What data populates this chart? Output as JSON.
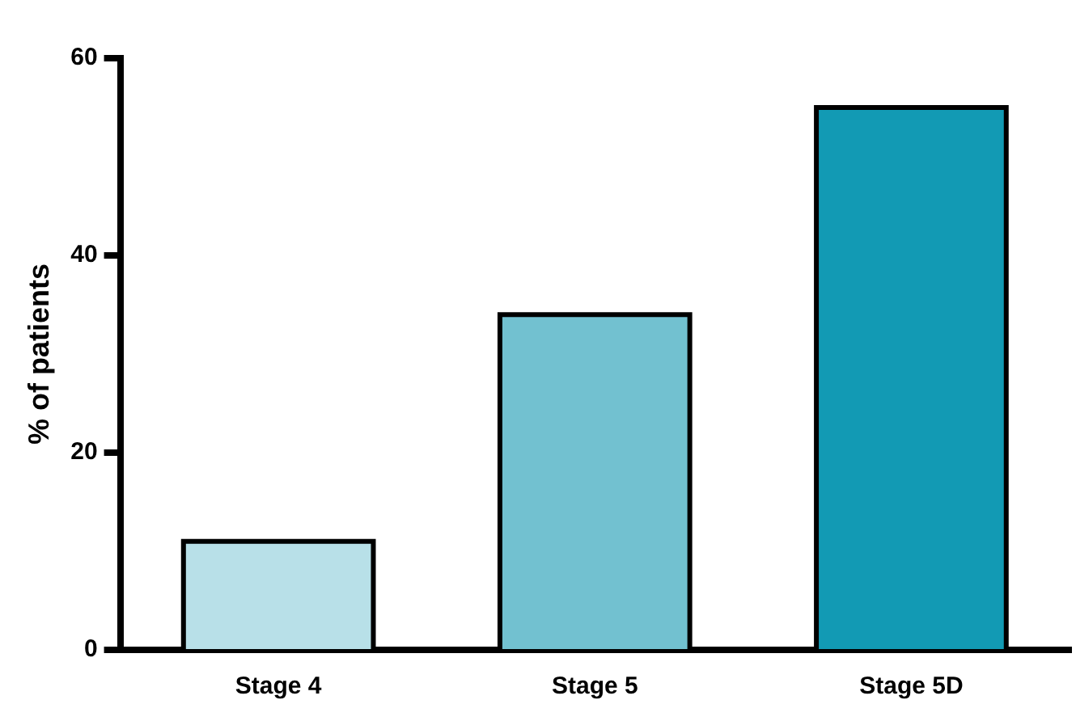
{
  "chart_data": {
    "type": "bar",
    "ylabel": "% of patients",
    "categories": [
      "Stage 4",
      "Stage 5",
      "Stage 5D"
    ],
    "values": [
      11,
      34,
      55
    ],
    "colors": [
      "#b8e0e8",
      "#72c1d0",
      "#129ab4"
    ],
    "ylim": [
      0,
      60
    ],
    "yticks": [
      0,
      20,
      40,
      60
    ],
    "grid": false,
    "legend": false
  }
}
